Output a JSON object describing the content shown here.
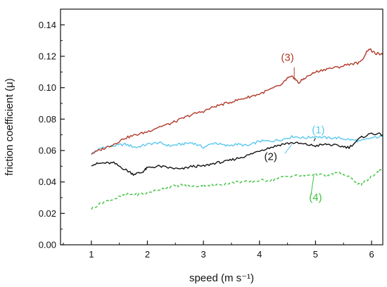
{
  "chart_data": {
    "type": "line",
    "title": "",
    "xlabel": "speed (m s⁻¹)",
    "ylabel": "friction coefficient (μ)",
    "xlim": [
      0.45,
      6.2
    ],
    "ylim": [
      0.0,
      0.15
    ],
    "xticks": [
      1,
      2,
      3,
      4,
      5,
      6
    ],
    "yticks": [
      0.0,
      0.02,
      0.04,
      0.06,
      0.08,
      0.1,
      0.12,
      0.14
    ],
    "xtick_labels": [
      "1",
      "2",
      "3",
      "4",
      "5",
      "6"
    ],
    "ytick_labels": [
      "0.00",
      "0.02",
      "0.04",
      "0.06",
      "0.08",
      "0.10",
      "0.12",
      "0.14"
    ],
    "grid": false,
    "legend": "none",
    "series": [
      {
        "name": "(1)",
        "color": "#5bc8ee",
        "dash": "solid",
        "label_at": [
          5.05,
          0.071
        ],
        "x": [
          1.0,
          1.2,
          1.4,
          1.6,
          1.8,
          2.0,
          2.2,
          2.4,
          2.6,
          2.8,
          3.0,
          3.2,
          3.4,
          3.6,
          3.8,
          4.0,
          4.2,
          4.4,
          4.6,
          4.8,
          5.0,
          5.2,
          5.4,
          5.6,
          5.8,
          6.0,
          6.2
        ],
        "y": [
          0.058,
          0.062,
          0.063,
          0.064,
          0.062,
          0.064,
          0.065,
          0.063,
          0.064,
          0.065,
          0.062,
          0.065,
          0.063,
          0.064,
          0.063,
          0.066,
          0.066,
          0.067,
          0.069,
          0.068,
          0.069,
          0.068,
          0.068,
          0.067,
          0.066,
          0.068,
          0.069
        ]
      },
      {
        "name": "(2)",
        "color": "#111111",
        "dash": "solid",
        "label_at": [
          4.2,
          0.054
        ],
        "x": [
          1.0,
          1.2,
          1.4,
          1.6,
          1.75,
          1.9,
          2.0,
          2.2,
          2.4,
          2.6,
          2.8,
          3.0,
          3.2,
          3.4,
          3.6,
          3.8,
          4.0,
          4.2,
          4.4,
          4.6,
          4.8,
          5.0,
          5.2,
          5.4,
          5.6,
          5.8,
          6.0,
          6.2
        ],
        "y": [
          0.051,
          0.052,
          0.052,
          0.048,
          0.045,
          0.046,
          0.049,
          0.05,
          0.049,
          0.048,
          0.05,
          0.05,
          0.052,
          0.053,
          0.055,
          0.057,
          0.06,
          0.062,
          0.064,
          0.065,
          0.064,
          0.063,
          0.064,
          0.063,
          0.062,
          0.068,
          0.071,
          0.07
        ]
      },
      {
        "name": "(3)",
        "color": "#b03a2a",
        "dash": "solid",
        "label_at": [
          4.5,
          0.117
        ],
        "x": [
          1.0,
          1.2,
          1.4,
          1.6,
          1.8,
          2.0,
          2.2,
          2.4,
          2.6,
          2.8,
          3.0,
          3.2,
          3.4,
          3.6,
          3.8,
          4.0,
          4.2,
          4.4,
          4.5,
          4.6,
          4.7,
          4.8,
          5.0,
          5.2,
          5.4,
          5.6,
          5.8,
          5.95,
          6.05,
          6.2
        ],
        "y": [
          0.058,
          0.061,
          0.064,
          0.068,
          0.07,
          0.072,
          0.075,
          0.077,
          0.08,
          0.083,
          0.085,
          0.088,
          0.09,
          0.092,
          0.094,
          0.096,
          0.099,
          0.102,
          0.106,
          0.107,
          0.103,
          0.106,
          0.11,
          0.112,
          0.113,
          0.115,
          0.116,
          0.125,
          0.122,
          0.121
        ]
      },
      {
        "name": "(4)",
        "color": "#3cc23c",
        "dash": "dashed",
        "label_at": [
          5.0,
          0.028
        ],
        "x": [
          1.0,
          1.2,
          1.4,
          1.6,
          1.8,
          2.0,
          2.2,
          2.4,
          2.6,
          2.8,
          3.0,
          3.2,
          3.4,
          3.6,
          3.8,
          4.0,
          4.2,
          4.4,
          4.6,
          4.8,
          5.0,
          5.2,
          5.4,
          5.6,
          5.8,
          5.95,
          6.1,
          6.2
        ],
        "y": [
          0.023,
          0.027,
          0.029,
          0.032,
          0.032,
          0.033,
          0.035,
          0.037,
          0.038,
          0.037,
          0.038,
          0.038,
          0.039,
          0.04,
          0.04,
          0.041,
          0.041,
          0.043,
          0.044,
          0.044,
          0.045,
          0.044,
          0.046,
          0.043,
          0.038,
          0.042,
          0.046,
          0.049
        ]
      }
    ]
  }
}
